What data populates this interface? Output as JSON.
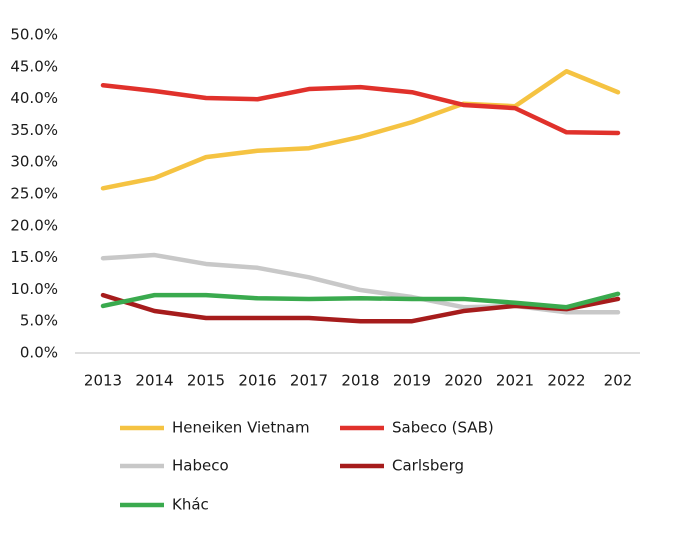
{
  "chart_data": {
    "type": "line",
    "categories": [
      "2013",
      "2014",
      "2015",
      "2016",
      "2017",
      "2018",
      "2019",
      "2020",
      "2021",
      "2022",
      "202"
    ],
    "series": [
      {
        "name": "Heneiken Vietnam",
        "color": "#f5c342",
        "values": [
          25.9,
          27.5,
          30.8,
          31.8,
          32.2,
          34.0,
          36.3,
          39.2,
          38.8,
          44.3,
          41.0
        ]
      },
      {
        "name": "Sabeco (SAB)",
        "color": "#e0312b",
        "values": [
          42.1,
          41.2,
          40.1,
          39.9,
          41.5,
          41.8,
          41.0,
          39.0,
          38.5,
          34.7,
          34.6
        ]
      },
      {
        "name": "Habeco",
        "color": "#c8c8c8",
        "values": [
          14.9,
          15.4,
          14.0,
          13.4,
          11.9,
          9.9,
          8.8,
          7.2,
          7.4,
          6.4,
          6.4
        ]
      },
      {
        "name": "Carlsberg",
        "color": "#a61c1c",
        "values": [
          9.1,
          6.6,
          5.5,
          5.5,
          5.5,
          5.0,
          5.0,
          6.6,
          7.4,
          6.9,
          8.5
        ]
      },
      {
        "name": "Khác",
        "color": "#3aaa4e",
        "values": [
          7.4,
          9.1,
          9.1,
          8.6,
          8.5,
          8.6,
          8.5,
          8.5,
          7.9,
          7.2,
          9.3
        ]
      }
    ],
    "ylim": [
      0,
      50
    ],
    "yticks": [
      {
        "value": 0,
        "label": "0.0%"
      },
      {
        "value": 5,
        "label": "5.0%"
      },
      {
        "value": 10,
        "label": "10.0%"
      },
      {
        "value": 15,
        "label": "15.0%"
      },
      {
        "value": 20,
        "label": "20.0%"
      },
      {
        "value": 25,
        "label": "25.0%"
      },
      {
        "value": 30,
        "label": "30.0%"
      },
      {
        "value": 35,
        "label": "35.0%"
      },
      {
        "value": 40,
        "label": "40.0%"
      },
      {
        "value": 45,
        "label": "45.0%"
      },
      {
        "value": 50,
        "label": "50.0%"
      }
    ],
    "grid": false
  }
}
